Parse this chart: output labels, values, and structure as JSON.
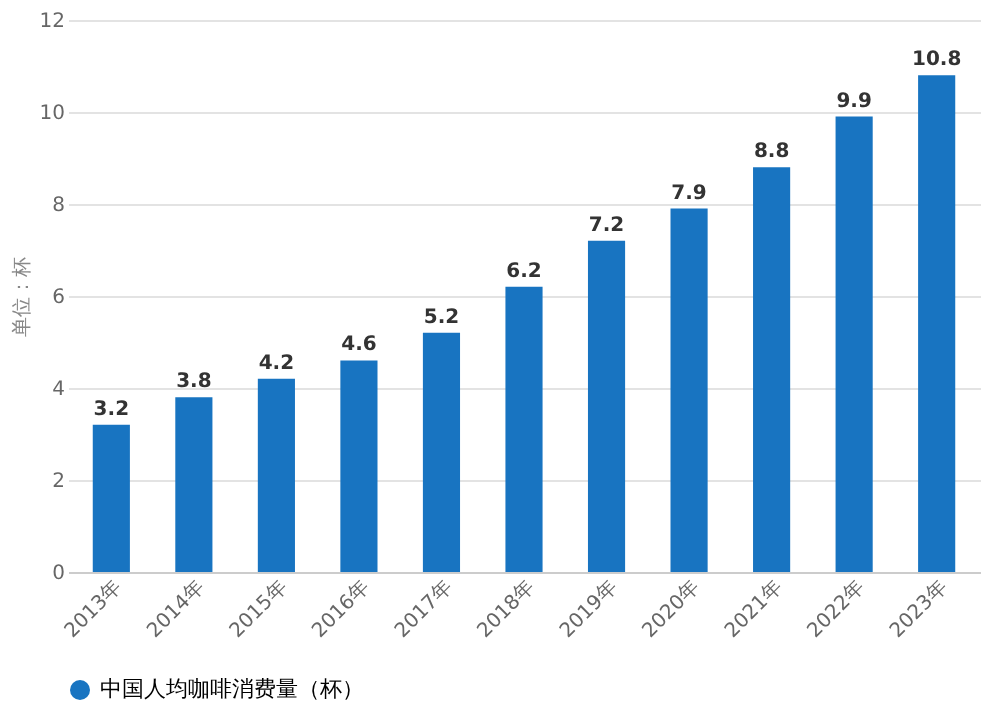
{
  "chart_data": {
    "type": "bar",
    "ylabel": "单位：杯",
    "categories": [
      "2013年",
      "2014年",
      "2015年",
      "2016年",
      "2017年",
      "2018年",
      "2019年",
      "2020年",
      "2021年",
      "2022年",
      "2023年"
    ],
    "series": [
      {
        "name": "中国人均咖啡消费量（杯）",
        "color": "#1874c1",
        "values": [
          3.2,
          3.8,
          4.2,
          4.6,
          5.2,
          6.2,
          7.2,
          7.9,
          8.8,
          9.9,
          10.8
        ]
      }
    ],
    "ylim": [
      0,
      12
    ],
    "yticks": [
      0,
      2,
      4,
      6,
      8,
      10,
      12
    ],
    "grid": "y",
    "legend": "bottom",
    "data_labels": true
  }
}
